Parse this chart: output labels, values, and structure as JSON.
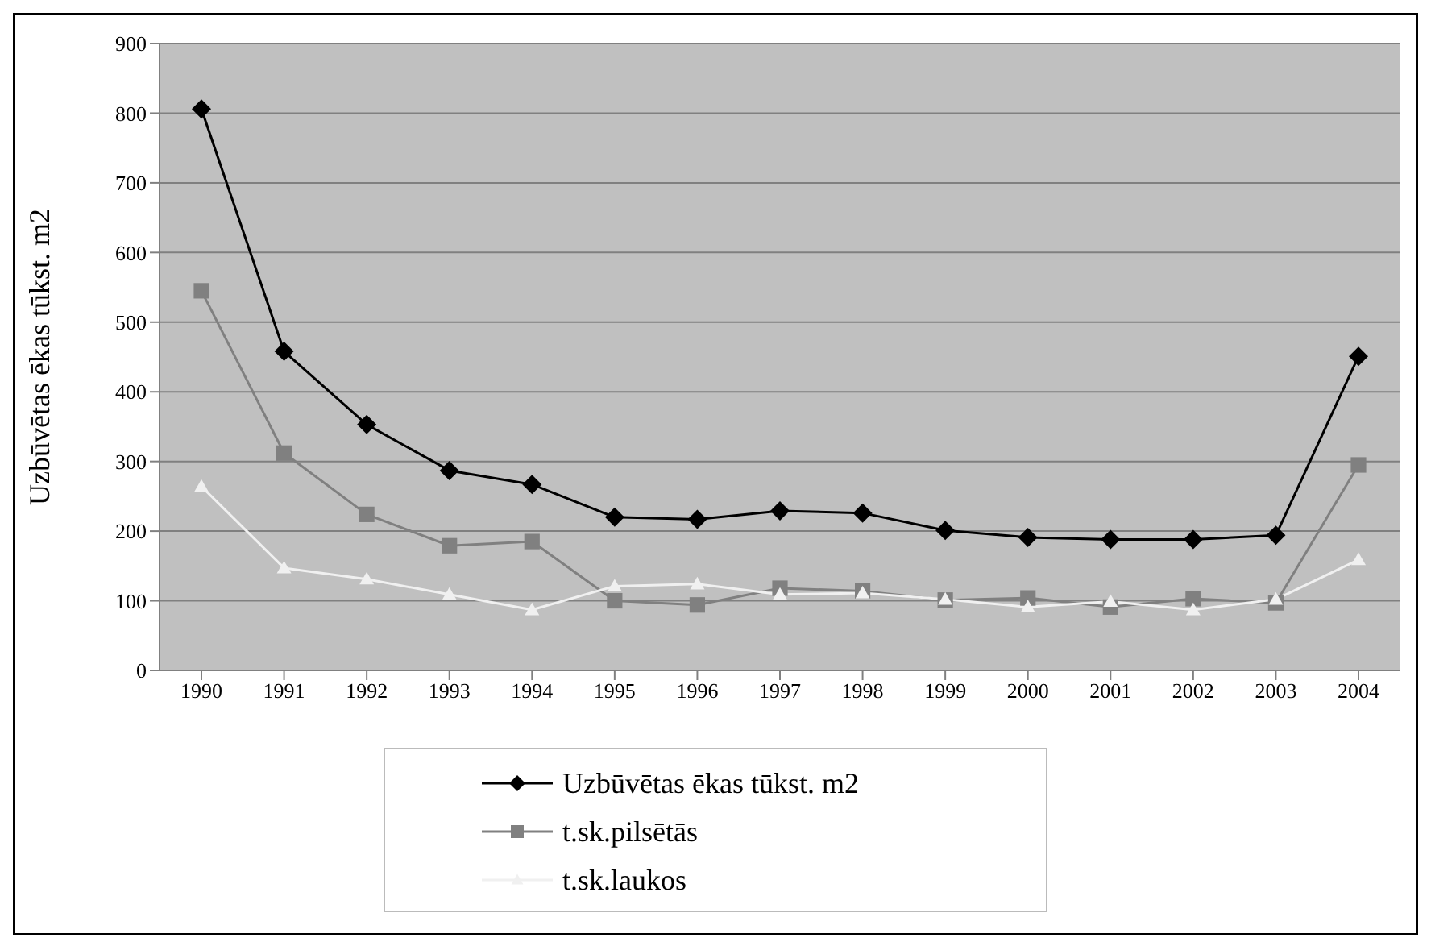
{
  "chart_data": {
    "type": "line",
    "ylabel": "Uzbūvētas ēkas tūkst. m2",
    "categories": [
      "1990",
      "1991",
      "1992",
      "1993",
      "1994",
      "1995",
      "1996",
      "1997",
      "1998",
      "1999",
      "2000",
      "2001",
      "2002",
      "2003",
      "2004"
    ],
    "series": [
      {
        "name": "Uzbūvētas ēkas tūkst. m2",
        "color": "#000000",
        "marker": "diamond",
        "values": [
          806,
          458,
          353,
          287,
          267,
          220,
          217,
          229,
          226,
          201,
          191,
          188,
          188,
          194,
          451
        ]
      },
      {
        "name": "t.sk.pilsētās",
        "color": "#808080",
        "marker": "square",
        "values": [
          545,
          312,
          224,
          179,
          185,
          100,
          94,
          118,
          114,
          101,
          104,
          91,
          103,
          97,
          295
        ]
      },
      {
        "name": "t.sk.laukos",
        "color": "#f0f0f0",
        "marker": "triangle",
        "values": [
          264,
          147,
          131,
          109,
          87,
          121,
          124,
          109,
          111,
          102,
          91,
          99,
          87,
          102,
          159
        ]
      }
    ],
    "ylim": [
      0,
      900
    ],
    "yticks": [
      0,
      100,
      200,
      300,
      400,
      500,
      600,
      700,
      800,
      900
    ],
    "grid": "y",
    "legend": "bottom",
    "line_style": "solid"
  }
}
